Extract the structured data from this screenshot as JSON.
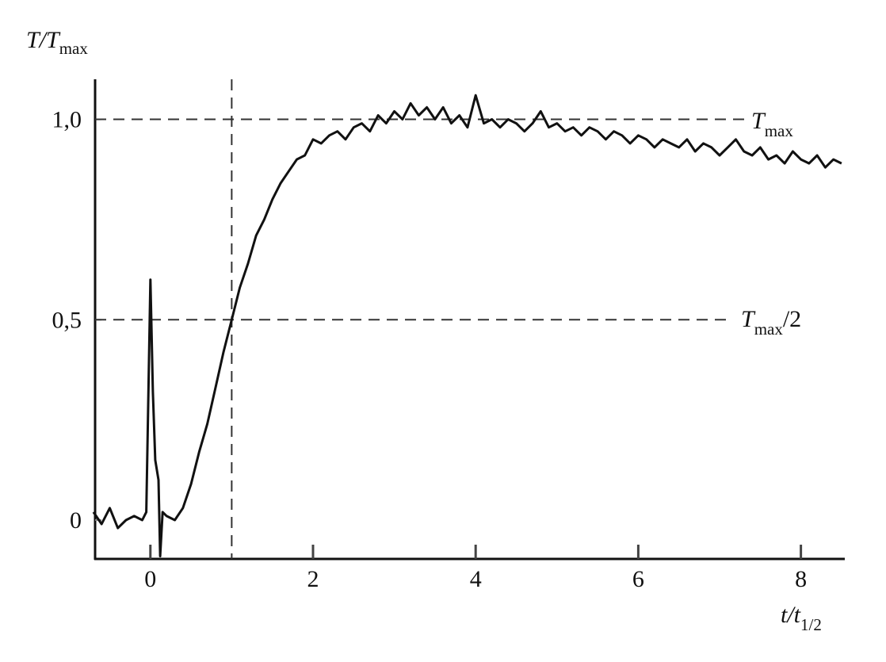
{
  "chart_data": {
    "type": "line",
    "ylabel": [
      "T/T",
      "max"
    ],
    "xlabel": [
      "t/t",
      "1/2"
    ],
    "annotations": [
      [
        "T",
        "max"
      ],
      [
        "T",
        "max",
        "/2"
      ]
    ],
    "reference_lines": {
      "y": [
        1.0,
        0.5
      ],
      "x": [
        1.0
      ]
    },
    "color": "#111111",
    "xlim": [
      -0.68,
      8.53
    ],
    "ylim": [
      -0.097,
      1.1
    ],
    "xticks": [
      0,
      2,
      4,
      6,
      8
    ],
    "yticks": [
      0,
      {
        "value": 0.5,
        "label": "0,5"
      },
      {
        "value": 1.0,
        "label": "1,0"
      }
    ],
    "x": [
      -0.7,
      -0.6,
      -0.5,
      -0.4,
      -0.3,
      -0.2,
      -0.1,
      -0.05,
      0,
      0.03,
      0.06,
      0.1,
      0.12,
      0.15,
      0.2,
      0.3,
      0.4,
      0.5,
      0.6,
      0.7,
      0.8,
      0.9,
      1.0,
      1.1,
      1.2,
      1.3,
      1.4,
      1.5,
      1.6,
      1.7,
      1.8,
      1.9,
      2.0,
      2.1,
      2.2,
      2.3,
      2.4,
      2.5,
      2.6,
      2.7,
      2.8,
      2.9,
      3.0,
      3.1,
      3.2,
      3.3,
      3.4,
      3.5,
      3.6,
      3.7,
      3.8,
      3.9,
      4.0,
      4.1,
      4.2,
      4.3,
      4.4,
      4.5,
      4.6,
      4.7,
      4.8,
      4.9,
      5.0,
      5.1,
      5.2,
      5.3,
      5.4,
      5.5,
      5.6,
      5.7,
      5.8,
      5.9,
      6.0,
      6.1,
      6.2,
      6.3,
      6.4,
      6.5,
      6.6,
      6.7,
      6.8,
      6.9,
      7.0,
      7.1,
      7.2,
      7.3,
      7.4,
      7.5,
      7.6,
      7.7,
      7.8,
      7.9,
      8.0,
      8.1,
      8.2,
      8.3,
      8.4,
      8.5
    ],
    "values": [
      0.02,
      -0.01,
      0.03,
      -0.02,
      0.0,
      0.01,
      0.0,
      0.02,
      0.6,
      0.32,
      0.15,
      0.1,
      -0.09,
      0.02,
      0.01,
      0.0,
      0.03,
      0.09,
      0.17,
      0.24,
      0.33,
      0.42,
      0.5,
      0.58,
      0.64,
      0.71,
      0.75,
      0.8,
      0.84,
      0.87,
      0.9,
      0.91,
      0.95,
      0.94,
      0.96,
      0.97,
      0.95,
      0.98,
      0.99,
      0.97,
      1.01,
      0.99,
      1.02,
      1.0,
      1.04,
      1.01,
      1.03,
      1.0,
      1.03,
      0.99,
      1.01,
      0.98,
      1.06,
      0.99,
      1.0,
      0.98,
      1.0,
      0.99,
      0.97,
      0.99,
      1.02,
      0.98,
      0.99,
      0.97,
      0.98,
      0.96,
      0.98,
      0.97,
      0.95,
      0.97,
      0.96,
      0.94,
      0.96,
      0.95,
      0.93,
      0.95,
      0.94,
      0.93,
      0.95,
      0.92,
      0.94,
      0.93,
      0.91,
      0.93,
      0.95,
      0.92,
      0.91,
      0.93,
      0.9,
      0.91,
      0.89,
      0.92,
      0.9,
      0.89,
      0.91,
      0.88,
      0.9,
      0.89
    ]
  }
}
